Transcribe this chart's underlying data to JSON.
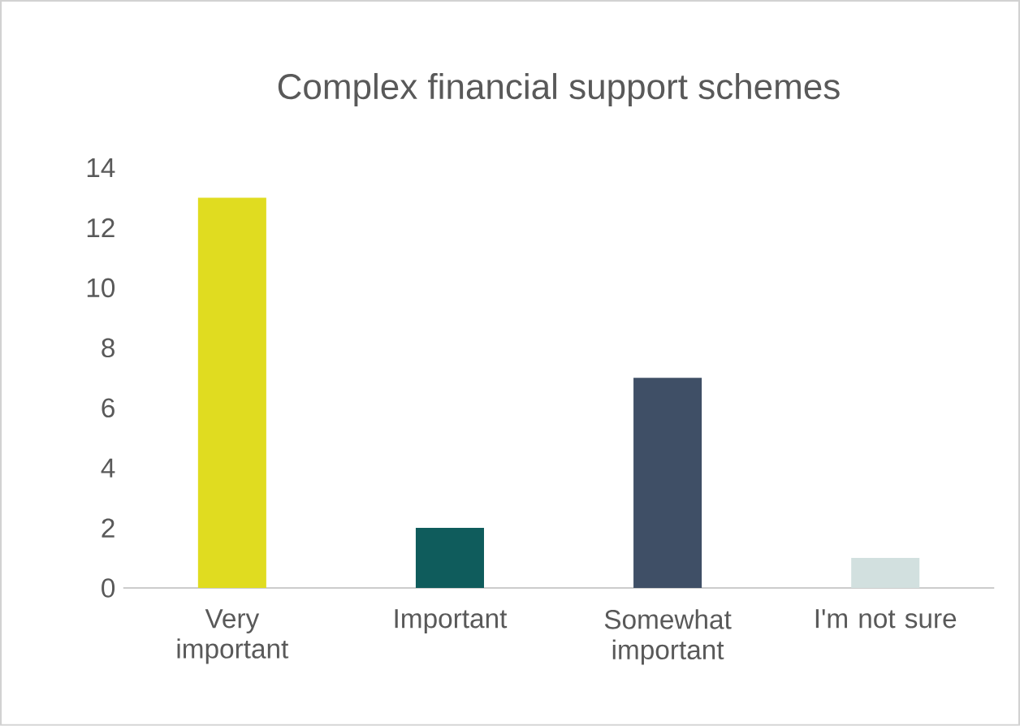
{
  "chart_data": {
    "type": "bar",
    "title": "Complex financial support schemes",
    "categories": [
      "Very important",
      "Important",
      "Somewhat important",
      "I'm not sure"
    ],
    "values": [
      13,
      2,
      7,
      1
    ],
    "colors": [
      "#e0dc20",
      "#0f5c5c",
      "#3f4f66",
      "#d2e0df"
    ],
    "ylim": [
      0,
      14
    ],
    "yticks": [
      0,
      2,
      4,
      6,
      8,
      10,
      12,
      14
    ]
  }
}
